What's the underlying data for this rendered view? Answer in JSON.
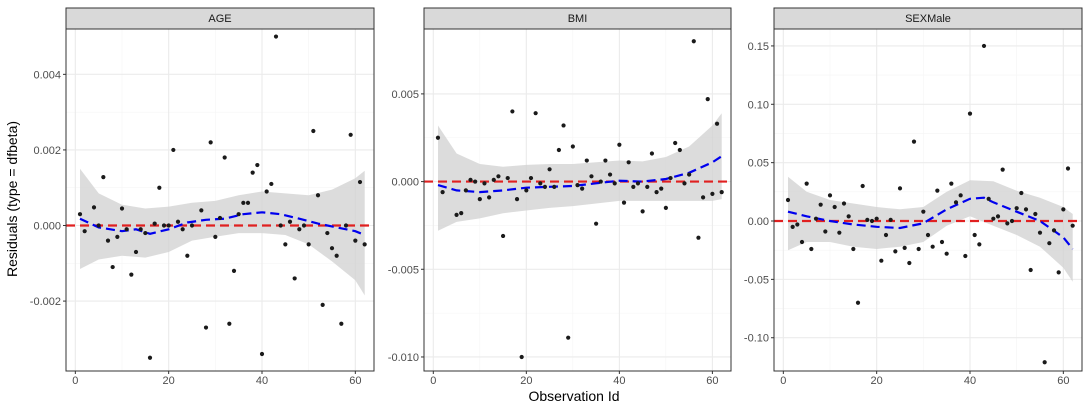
{
  "chart_data": [
    {
      "type": "scatter",
      "title": "AGE",
      "xlim": [
        -2,
        64
      ],
      "ylim": [
        -0.00385,
        0.0052
      ],
      "x_ticks": [
        0,
        20,
        40,
        60
      ],
      "y_ticks": [
        -0.002,
        0.0,
        0.002,
        0.004
      ],
      "y_tick_labels": [
        "-0.002",
        "0.000",
        "0.002",
        "0.004"
      ],
      "reference_line": 0,
      "points": [
        [
          1,
          0.0003
        ],
        [
          2,
          -0.00015
        ],
        [
          4,
          0.00048
        ],
        [
          5,
          0.0
        ],
        [
          6,
          0.00128
        ],
        [
          7,
          -0.0004
        ],
        [
          8,
          -0.0011
        ],
        [
          9,
          -0.0003
        ],
        [
          10,
          0.00045
        ],
        [
          11,
          -0.0001
        ],
        [
          12,
          -0.0013
        ],
        [
          13,
          -0.0007
        ],
        [
          14,
          -0.0001
        ],
        [
          15,
          -0.0002
        ],
        [
          16,
          -0.0035
        ],
        [
          17,
          5e-05
        ],
        [
          18,
          0.001
        ],
        [
          19,
          0.0
        ],
        [
          20,
          0.0
        ],
        [
          21,
          0.002
        ],
        [
          22,
          0.0001
        ],
        [
          23,
          -0.0001
        ],
        [
          24,
          -0.0008
        ],
        [
          25,
          0.0
        ],
        [
          27,
          0.0004
        ],
        [
          28,
          -0.0027
        ],
        [
          29,
          0.0022
        ],
        [
          30,
          -0.0003
        ],
        [
          31,
          0.0002
        ],
        [
          32,
          0.0018
        ],
        [
          33,
          -0.0026
        ],
        [
          34,
          -0.0012
        ],
        [
          35,
          0.0003
        ],
        [
          36,
          0.0006
        ],
        [
          37,
          0.0006
        ],
        [
          38,
          0.0014
        ],
        [
          39,
          0.0016
        ],
        [
          40,
          -0.0034
        ],
        [
          41,
          0.0009
        ],
        [
          42,
          0.0011
        ],
        [
          43,
          0.005
        ],
        [
          44,
          0.0
        ],
        [
          45,
          -0.0005
        ],
        [
          46,
          0.0001
        ],
        [
          47,
          -0.0014
        ],
        [
          48,
          -0.0001
        ],
        [
          49,
          0.0
        ],
        [
          50,
          -0.0005
        ],
        [
          51,
          0.0025
        ],
        [
          52,
          0.0008
        ],
        [
          53,
          -0.0021
        ],
        [
          54,
          -0.0002
        ],
        [
          55,
          -0.0006
        ],
        [
          56,
          -0.0008
        ],
        [
          57,
          -0.0026
        ],
        [
          58,
          0.0
        ],
        [
          59,
          0.0024
        ],
        [
          60,
          -0.0004
        ],
        [
          61,
          0.00115
        ],
        [
          62,
          -0.0005
        ]
      ],
      "smooth": [
        [
          1,
          0.00018
        ],
        [
          5,
          -5e-05
        ],
        [
          10,
          -0.00015
        ],
        [
          13,
          -0.0001
        ],
        [
          16,
          -0.00022
        ],
        [
          20,
          -0.0001
        ],
        [
          24,
          8e-05
        ],
        [
          28,
          0.00015
        ],
        [
          32,
          0.00018
        ],
        [
          36,
          0.0003
        ],
        [
          40,
          0.00035
        ],
        [
          44,
          0.0003
        ],
        [
          48,
          0.00018
        ],
        [
          52,
          5e-05
        ],
        [
          56,
          -5e-05
        ],
        [
          60,
          -0.00015
        ],
        [
          62,
          -0.00025
        ]
      ],
      "band": [
        [
          1,
          0.0015,
          -0.00115
        ],
        [
          5,
          0.00085,
          -0.0009
        ],
        [
          10,
          0.00055,
          -0.0008
        ],
        [
          15,
          0.00045,
          -0.00085
        ],
        [
          20,
          0.0005,
          -0.0007
        ],
        [
          25,
          0.0006,
          -0.0004
        ],
        [
          30,
          0.00065,
          -0.0003
        ],
        [
          35,
          0.0008,
          -0.0002
        ],
        [
          40,
          0.0009,
          -0.0002
        ],
        [
          45,
          0.00085,
          -0.00025
        ],
        [
          50,
          0.0008,
          -0.0005
        ],
        [
          55,
          0.00095,
          -0.00095
        ],
        [
          60,
          0.00125,
          -0.00145
        ],
        [
          62,
          0.00145,
          -0.00185
        ]
      ]
    },
    {
      "type": "scatter",
      "title": "BMI",
      "xlim": [
        -2,
        64
      ],
      "ylim": [
        -0.0108,
        0.0087
      ],
      "x_ticks": [
        0,
        20,
        40,
        60
      ],
      "y_ticks": [
        -0.01,
        -0.005,
        0.0,
        0.005
      ],
      "y_tick_labels": [
        "-0.010",
        "-0.005",
        "0.000",
        "0.005"
      ],
      "reference_line": 0,
      "points": [
        [
          1,
          0.0025
        ],
        [
          2,
          -0.0006
        ],
        [
          5,
          -0.0019
        ],
        [
          6,
          -0.0018
        ],
        [
          7,
          -0.0005
        ],
        [
          8,
          0.0001
        ],
        [
          9,
          0.0
        ],
        [
          10,
          -0.001
        ],
        [
          11,
          -0.0001
        ],
        [
          12,
          -0.0009
        ],
        [
          13,
          0.0001
        ],
        [
          14,
          0.0003
        ],
        [
          15,
          -0.0031
        ],
        [
          16,
          0.0002
        ],
        [
          17,
          0.004
        ],
        [
          18,
          -0.001
        ],
        [
          19,
          -0.01
        ],
        [
          20,
          -0.0005
        ],
        [
          21,
          0.0002
        ],
        [
          22,
          0.0039
        ],
        [
          23,
          -0.0001
        ],
        [
          24,
          -0.0003
        ],
        [
          25,
          0.0007
        ],
        [
          26,
          -0.0003
        ],
        [
          27,
          0.0018
        ],
        [
          28,
          0.0032
        ],
        [
          29,
          -0.0089
        ],
        [
          30,
          0.002
        ],
        [
          31,
          -0.0002
        ],
        [
          32,
          -0.0004
        ],
        [
          33,
          0.0012
        ],
        [
          34,
          0.0003
        ],
        [
          35,
          -0.0024
        ],
        [
          36,
          0.0
        ],
        [
          37,
          0.0012
        ],
        [
          38,
          0.0004
        ],
        [
          39,
          -0.0001
        ],
        [
          40,
          0.0021
        ],
        [
          41,
          -0.0012
        ],
        [
          42,
          0.0011
        ],
        [
          43,
          -0.0003
        ],
        [
          44,
          -0.0001
        ],
        [
          45,
          -0.0017
        ],
        [
          46,
          -0.0003
        ],
        [
          47,
          0.0016
        ],
        [
          48,
          -0.0006
        ],
        [
          49,
          -0.0004
        ],
        [
          50,
          -0.0015
        ],
        [
          51,
          0.0002
        ],
        [
          52,
          0.0022
        ],
        [
          53,
          0.0018
        ],
        [
          54,
          -0.0001
        ],
        [
          55,
          0.0004
        ],
        [
          56,
          0.008
        ],
        [
          57,
          -0.0032
        ],
        [
          58,
          -0.0009
        ],
        [
          59,
          0.0047
        ],
        [
          60,
          -0.0007
        ],
        [
          61,
          0.0033
        ],
        [
          62,
          -0.0006
        ]
      ],
      "smooth": [
        [
          1,
          -0.0002
        ],
        [
          5,
          -0.0005
        ],
        [
          10,
          -0.0006
        ],
        [
          15,
          -0.0005
        ],
        [
          20,
          -0.00035
        ],
        [
          25,
          -0.0003
        ],
        [
          30,
          -0.00025
        ],
        [
          35,
          -0.0001
        ],
        [
          40,
          5e-05
        ],
        [
          45,
          0.0
        ],
        [
          50,
          0.00015
        ],
        [
          55,
          0.0005
        ],
        [
          60,
          0.0011
        ],
        [
          62,
          0.00145
        ]
      ],
      "band": [
        [
          1,
          0.0032,
          -0.0028
        ],
        [
          5,
          0.0016,
          -0.0023
        ],
        [
          10,
          0.001,
          -0.0021
        ],
        [
          15,
          0.00085,
          -0.0018
        ],
        [
          20,
          0.00095,
          -0.00165
        ],
        [
          25,
          0.001,
          -0.0015
        ],
        [
          30,
          0.001,
          -0.0014
        ],
        [
          35,
          0.0011,
          -0.00125
        ],
        [
          40,
          0.0012,
          -0.0011
        ],
        [
          45,
          0.00115,
          -0.0011
        ],
        [
          50,
          0.0014,
          -0.0011
        ],
        [
          55,
          0.002,
          -0.0011
        ],
        [
          60,
          0.0032,
          -0.0011
        ],
        [
          62,
          0.0039,
          -0.001
        ]
      ]
    },
    {
      "type": "scatter",
      "title": "SEXMale",
      "xlim": [
        -2,
        64
      ],
      "ylim": [
        -0.1285,
        0.1645
      ],
      "x_ticks": [
        0,
        20,
        40,
        60
      ],
      "y_ticks": [
        -0.1,
        -0.05,
        0.0,
        0.05,
        0.1,
        0.15
      ],
      "y_tick_labels": [
        "-0.10",
        "-0.05",
        "0.00",
        "0.05",
        "0.10",
        "0.15"
      ],
      "reference_line": 0,
      "points": [
        [
          1,
          0.018
        ],
        [
          2,
          -0.005
        ],
        [
          3,
          -0.003
        ],
        [
          4,
          -0.018
        ],
        [
          5,
          0.032
        ],
        [
          6,
          -0.024
        ],
        [
          7,
          0.002
        ],
        [
          8,
          0.014
        ],
        [
          9,
          -0.009
        ],
        [
          10,
          0.022
        ],
        [
          11,
          0.012
        ],
        [
          12,
          -0.01
        ],
        [
          13,
          0.015
        ],
        [
          14,
          0.004
        ],
        [
          15,
          -0.024
        ],
        [
          16,
          -0.07
        ],
        [
          17,
          0.03
        ],
        [
          18,
          0.001
        ],
        [
          19,
          0.0
        ],
        [
          20,
          0.002
        ],
        [
          21,
          -0.034
        ],
        [
          22,
          -0.012
        ],
        [
          23,
          0.001
        ],
        [
          24,
          -0.026
        ],
        [
          25,
          0.028
        ],
        [
          26,
          -0.023
        ],
        [
          27,
          -0.036
        ],
        [
          28,
          0.068
        ],
        [
          29,
          -0.024
        ],
        [
          30,
          0.008
        ],
        [
          31,
          -0.012
        ],
        [
          32,
          -0.022
        ],
        [
          33,
          0.026
        ],
        [
          34,
          -0.018
        ],
        [
          35,
          -0.028
        ],
        [
          36,
          0.032
        ],
        [
          37,
          0.016
        ],
        [
          38,
          0.022
        ],
        [
          39,
          -0.03
        ],
        [
          40,
          0.092
        ],
        [
          41,
          -0.012
        ],
        [
          42,
          -0.02
        ],
        [
          43,
          0.15
        ],
        [
          44,
          0.019
        ],
        [
          45,
          0.002
        ],
        [
          46,
          0.004
        ],
        [
          47,
          0.044
        ],
        [
          48,
          -0.002
        ],
        [
          49,
          0.0
        ],
        [
          50,
          0.011
        ],
        [
          51,
          0.024
        ],
        [
          52,
          0.01
        ],
        [
          53,
          -0.042
        ],
        [
          54,
          0.006
        ],
        [
          55,
          -0.01
        ],
        [
          56,
          -0.121
        ],
        [
          57,
          -0.019
        ],
        [
          58,
          -0.008
        ],
        [
          59,
          -0.044
        ],
        [
          60,
          0.01
        ],
        [
          61,
          0.045
        ],
        [
          62,
          -0.004
        ]
      ],
      "smooth": [
        [
          1,
          0.008
        ],
        [
          5,
          0.004
        ],
        [
          10,
          0.0
        ],
        [
          15,
          -0.003
        ],
        [
          20,
          -0.005
        ],
        [
          25,
          -0.006
        ],
        [
          30,
          -0.002
        ],
        [
          35,
          0.01
        ],
        [
          40,
          0.019
        ],
        [
          43,
          0.02
        ],
        [
          45,
          0.016
        ],
        [
          50,
          0.008
        ],
        [
          55,
          0.0
        ],
        [
          60,
          -0.014
        ],
        [
          62,
          -0.024
        ]
      ],
      "band": [
        [
          1,
          0.038,
          -0.025
        ],
        [
          5,
          0.025,
          -0.018
        ],
        [
          10,
          0.018,
          -0.018
        ],
        [
          15,
          0.015,
          -0.022
        ],
        [
          20,
          0.012,
          -0.024
        ],
        [
          25,
          0.01,
          -0.022
        ],
        [
          30,
          0.012,
          -0.018
        ],
        [
          35,
          0.025,
          -0.004
        ],
        [
          40,
          0.035,
          0.004
        ],
        [
          45,
          0.034,
          -0.004
        ],
        [
          50,
          0.026,
          -0.012
        ],
        [
          55,
          0.02,
          -0.022
        ],
        [
          60,
          0.012,
          -0.04
        ],
        [
          62,
          0.006,
          -0.052
        ]
      ]
    }
  ],
  "axis_labels": {
    "x": "Observation Id",
    "y": "Residuals (type = dfbeta)"
  },
  "colors": {
    "panel_border": "#333333",
    "strip_fill": "#d9d9d9",
    "grid_major": "#ebebeb",
    "grid_minor": "#f5f5f5",
    "point": "#1a1a1a",
    "smooth": "#0000ee",
    "reference": "#e02020",
    "band": "#d0d0d0"
  }
}
